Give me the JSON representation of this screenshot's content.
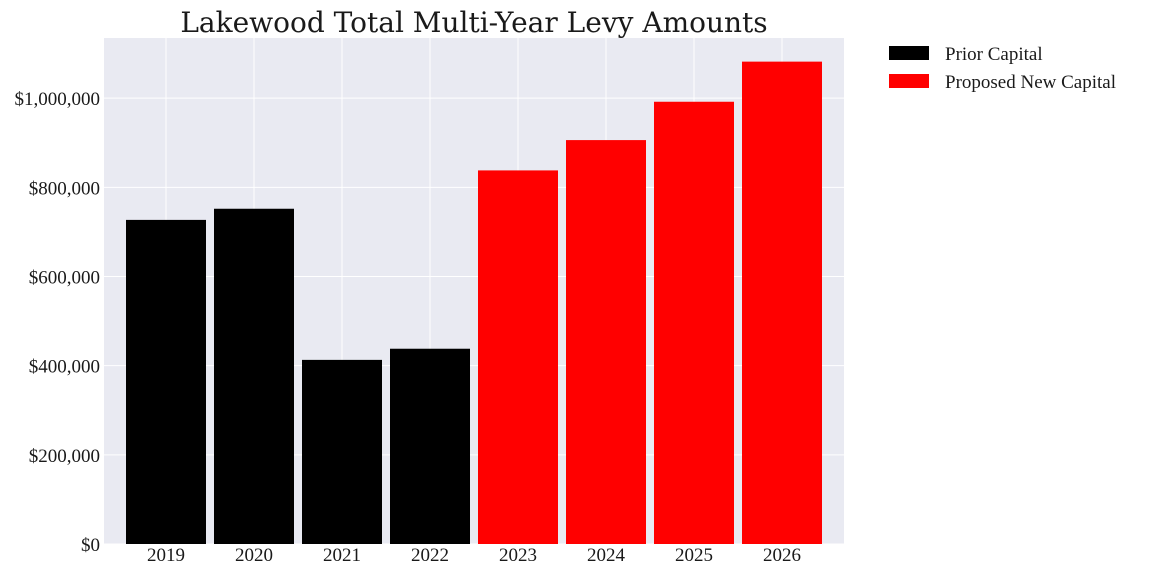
{
  "chart_data": {
    "type": "bar",
    "title": "Lakewood Total Multi-Year Levy Amounts",
    "xlabel": "",
    "ylabel": "",
    "categories": [
      "2019",
      "2020",
      "2021",
      "2022",
      "2023",
      "2024",
      "2025",
      "2026"
    ],
    "series": [
      {
        "name": "Prior Capital",
        "color": "#000000",
        "values": [
          727000,
          752000,
          413000,
          438000,
          null,
          null,
          null,
          null
        ]
      },
      {
        "name": "Proposed New Capital",
        "color": "#ff0000",
        "values": [
          null,
          null,
          null,
          null,
          838000,
          906000,
          992000,
          1082000
        ]
      }
    ],
    "ylim": [
      0,
      1135000
    ],
    "yticks": [
      0,
      200000,
      400000,
      600000,
      800000,
      1000000
    ],
    "ytick_labels": [
      "$0",
      "$200,000",
      "$400,000",
      "$600,000",
      "$800,000",
      "$1,000,000"
    ],
    "grid": true,
    "background": "#e9eaf2",
    "legend_position": "outside-top-right"
  }
}
